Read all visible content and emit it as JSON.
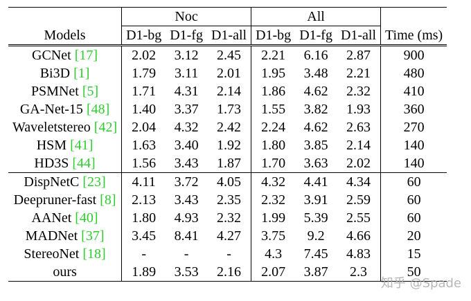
{
  "header": {
    "models": "Models",
    "noc": "Noc",
    "all": "All",
    "time": "Time (ms)",
    "sub": [
      "D1-bg",
      "D1-fg",
      "D1-all",
      "D1-bg",
      "D1-fg",
      "D1-all"
    ]
  },
  "group1": [
    {
      "name": "GCNet ",
      "ref": "[17]",
      "v": [
        "2.02",
        "3.12",
        "2.45",
        "2.21",
        "6.16",
        "2.87"
      ],
      "time": "900"
    },
    {
      "name": "Bi3D ",
      "ref": "[1]",
      "v": [
        "1.79",
        "3.11",
        "2.01",
        "1.95",
        "3.48",
        "2.21"
      ],
      "time": "480"
    },
    {
      "name": "PSMNet ",
      "ref": "[5]",
      "v": [
        "1.71",
        "4.31",
        "2.14",
        "1.86",
        "4.62",
        "2.32"
      ],
      "time": "410"
    },
    {
      "name": "GA-Net-15 ",
      "ref": "[48]",
      "v": [
        "1.40",
        "3.37",
        "1.73",
        "1.55",
        "3.82",
        "1.93"
      ],
      "time": "360"
    },
    {
      "name": "Waveletstereo ",
      "ref": "[42]",
      "v": [
        "2.04",
        "4.32",
        "2.42",
        "2.24",
        "4.62",
        "2.63"
      ],
      "time": "270"
    },
    {
      "name": "HSM ",
      "ref": "[41]",
      "v": [
        "1.63",
        "3.40",
        "1.92",
        "1.80",
        "3.85",
        "2.14"
      ],
      "time": "140"
    },
    {
      "name": "HD3S ",
      "ref": "[44]",
      "v": [
        "1.56",
        "3.43",
        "1.87",
        "1.70",
        "3.63",
        "2.02"
      ],
      "time": "140"
    }
  ],
  "group2": [
    {
      "name": "DispNetC ",
      "ref": "[23]",
      "v": [
        "4.11",
        "3.72",
        "4.05",
        "4.32",
        "4.41",
        "4.34"
      ],
      "time": "60"
    },
    {
      "name": "Deepruner-fast ",
      "ref": "[8]",
      "v": [
        "2.13",
        "3.43",
        "2.35",
        "2.32",
        "3.91",
        "2.59"
      ],
      "time": "60"
    },
    {
      "name": "AANet ",
      "ref": "[40]",
      "v": [
        "1.80",
        "4.93",
        "2.32",
        "1.99",
        "5.39",
        "2.55"
      ],
      "time": "60"
    },
    {
      "name": "MADNet ",
      "ref": "[37]",
      "v": [
        "3.45",
        "8.41",
        "4.27",
        "3.75",
        "9.2",
        "4.66"
      ],
      "time": "20"
    },
    {
      "name": "StereoNet ",
      "ref": "[18]",
      "v": [
        "-",
        "-",
        "-",
        "4.3",
        "7.45",
        "4.83"
      ],
      "time": "15"
    },
    {
      "name": "ours",
      "ref": "",
      "v": [
        "1.89",
        "3.53",
        "2.16",
        "2.07",
        "3.87",
        "2.3"
      ],
      "time": "50"
    }
  ],
  "watermark": "知乎 @Spade"
}
